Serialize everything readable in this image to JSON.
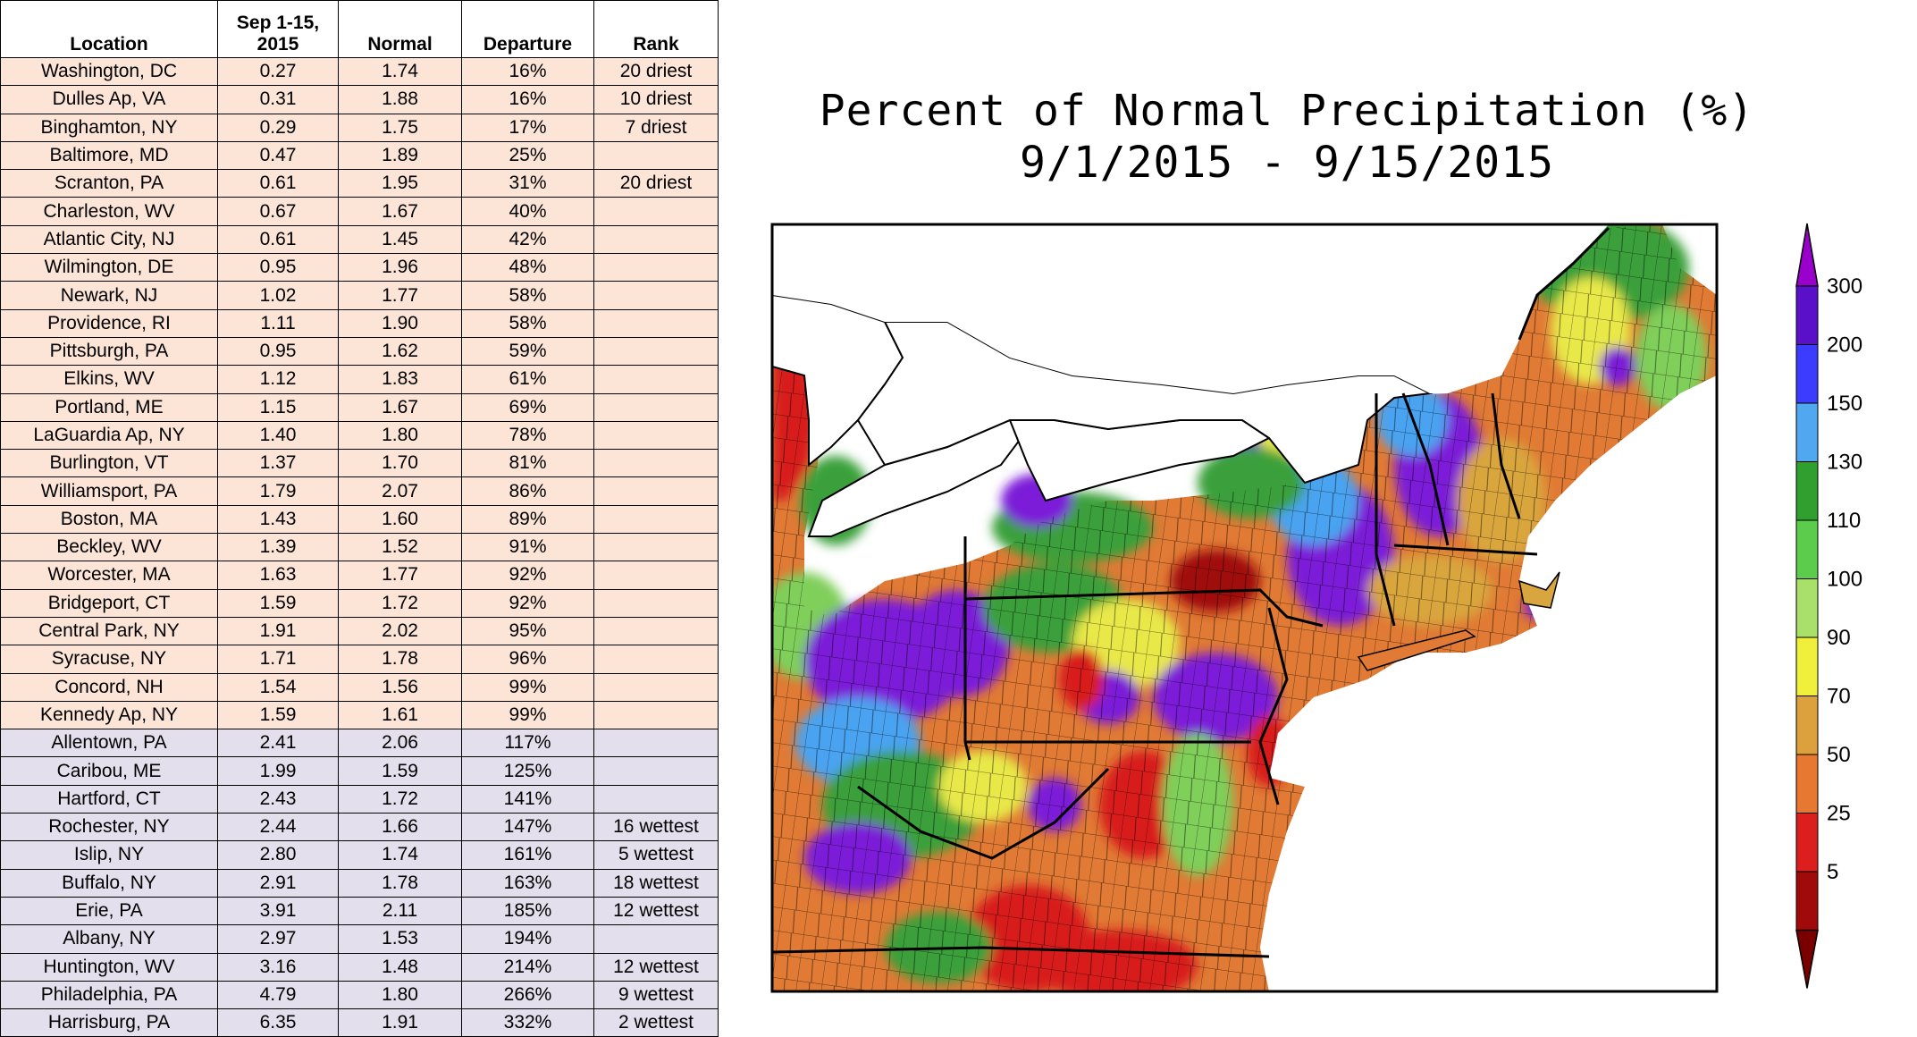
{
  "table": {
    "headers": {
      "location": "Location",
      "observed_line1": "Sep 1-15,",
      "observed_line2": "2015",
      "normal": "Normal",
      "departure": "Departure",
      "rank": "Rank"
    },
    "rows": [
      {
        "location": "Washington, DC",
        "observed": "0.27",
        "normal": "1.74",
        "departure": "16%",
        "rank": "20 driest",
        "group": "dry"
      },
      {
        "location": "Dulles Ap, VA",
        "observed": "0.31",
        "normal": "1.88",
        "departure": "16%",
        "rank": "10 driest",
        "group": "dry"
      },
      {
        "location": "Binghamton, NY",
        "observed": "0.29",
        "normal": "1.75",
        "departure": "17%",
        "rank": "7 driest",
        "group": "dry"
      },
      {
        "location": "Baltimore, MD",
        "observed": "0.47",
        "normal": "1.89",
        "departure": "25%",
        "rank": "",
        "group": "dry"
      },
      {
        "location": "Scranton, PA",
        "observed": "0.61",
        "normal": "1.95",
        "departure": "31%",
        "rank": "20 driest",
        "group": "dry"
      },
      {
        "location": "Charleston, WV",
        "observed": "0.67",
        "normal": "1.67",
        "departure": "40%",
        "rank": "",
        "group": "dry"
      },
      {
        "location": "Atlantic City, NJ",
        "observed": "0.61",
        "normal": "1.45",
        "departure": "42%",
        "rank": "",
        "group": "dry"
      },
      {
        "location": "Wilmington, DE",
        "observed": "0.95",
        "normal": "1.96",
        "departure": "48%",
        "rank": "",
        "group": "dry"
      },
      {
        "location": "Newark, NJ",
        "observed": "1.02",
        "normal": "1.77",
        "departure": "58%",
        "rank": "",
        "group": "dry"
      },
      {
        "location": "Providence, RI",
        "observed": "1.11",
        "normal": "1.90",
        "departure": "58%",
        "rank": "",
        "group": "dry"
      },
      {
        "location": "Pittsburgh, PA",
        "observed": "0.95",
        "normal": "1.62",
        "departure": "59%",
        "rank": "",
        "group": "dry"
      },
      {
        "location": "Elkins, WV",
        "observed": "1.12",
        "normal": "1.83",
        "departure": "61%",
        "rank": "",
        "group": "dry"
      },
      {
        "location": "Portland, ME",
        "observed": "1.15",
        "normal": "1.67",
        "departure": "69%",
        "rank": "",
        "group": "dry"
      },
      {
        "location": "LaGuardia Ap, NY",
        "observed": "1.40",
        "normal": "1.80",
        "departure": "78%",
        "rank": "",
        "group": "dry"
      },
      {
        "location": "Burlington, VT",
        "observed": "1.37",
        "normal": "1.70",
        "departure": "81%",
        "rank": "",
        "group": "dry"
      },
      {
        "location": "Williamsport, PA",
        "observed": "1.79",
        "normal": "2.07",
        "departure": "86%",
        "rank": "",
        "group": "dry"
      },
      {
        "location": "Boston, MA",
        "observed": "1.43",
        "normal": "1.60",
        "departure": "89%",
        "rank": "",
        "group": "dry"
      },
      {
        "location": "Beckley, WV",
        "observed": "1.39",
        "normal": "1.52",
        "departure": "91%",
        "rank": "",
        "group": "dry"
      },
      {
        "location": "Worcester, MA",
        "observed": "1.63",
        "normal": "1.77",
        "departure": "92%",
        "rank": "",
        "group": "dry"
      },
      {
        "location": "Bridgeport, CT",
        "observed": "1.59",
        "normal": "1.72",
        "departure": "92%",
        "rank": "",
        "group": "dry"
      },
      {
        "location": "Central Park, NY",
        "observed": "1.91",
        "normal": "2.02",
        "departure": "95%",
        "rank": "",
        "group": "dry"
      },
      {
        "location": "Syracuse, NY",
        "observed": "1.71",
        "normal": "1.78",
        "departure": "96%",
        "rank": "",
        "group": "dry"
      },
      {
        "location": "Concord, NH",
        "observed": "1.54",
        "normal": "1.56",
        "departure": "99%",
        "rank": "",
        "group": "dry"
      },
      {
        "location": "Kennedy Ap, NY",
        "observed": "1.59",
        "normal": "1.61",
        "departure": "99%",
        "rank": "",
        "group": "dry"
      },
      {
        "location": "Allentown, PA",
        "observed": "2.41",
        "normal": "2.06",
        "departure": "117%",
        "rank": "",
        "group": "wet"
      },
      {
        "location": "Caribou, ME",
        "observed": "1.99",
        "normal": "1.59",
        "departure": "125%",
        "rank": "",
        "group": "wet"
      },
      {
        "location": "Hartford, CT",
        "observed": "2.43",
        "normal": "1.72",
        "departure": "141%",
        "rank": "",
        "group": "wet"
      },
      {
        "location": "Rochester, NY",
        "observed": "2.44",
        "normal": "1.66",
        "departure": "147%",
        "rank": "16 wettest",
        "group": "wet"
      },
      {
        "location": "Islip, NY",
        "observed": "2.80",
        "normal": "1.74",
        "departure": "161%",
        "rank": "5 wettest",
        "group": "wet"
      },
      {
        "location": "Buffalo, NY",
        "observed": "2.91",
        "normal": "1.78",
        "departure": "163%",
        "rank": "18 wettest",
        "group": "wet"
      },
      {
        "location": "Erie, PA",
        "observed": "3.91",
        "normal": "2.11",
        "departure": "185%",
        "rank": "12 wettest",
        "group": "wet"
      },
      {
        "location": "Albany, NY",
        "observed": "2.97",
        "normal": "1.53",
        "departure": "194%",
        "rank": "",
        "group": "wet"
      },
      {
        "location": "Huntington, WV",
        "observed": "3.16",
        "normal": "1.48",
        "departure": "214%",
        "rank": "12 wettest",
        "group": "wet"
      },
      {
        "location": "Philadelphia, PA",
        "observed": "4.79",
        "normal": "1.80",
        "departure": "266%",
        "rank": "9 wettest",
        "group": "wet"
      },
      {
        "location": "Harrisburg, PA",
        "observed": "6.35",
        "normal": "1.91",
        "departure": "332%",
        "rank": "2 wettest",
        "group": "wet"
      }
    ],
    "row_colors": {
      "dry": "#fce4d6",
      "wet": "#e4dfec"
    }
  },
  "map": {
    "title_line1": "Percent of Normal Precipitation (%)",
    "title_line2": "9/1/2015 - 9/15/2015",
    "colorbar": {
      "ticks": [
        "300",
        "200",
        "150",
        "130",
        "110",
        "100",
        "90",
        "70",
        "50",
        "25",
        "5"
      ],
      "colors_top_to_bottom": [
        "#9900cc",
        "#5a0fc8",
        "#3c3cff",
        "#4fa8f0",
        "#2fa02f",
        "#5ccc4c",
        "#a8e06a",
        "#f0f03c",
        "#dca03c",
        "#e67832",
        "#dc1e1e",
        "#a00a0a",
        "#7a0000"
      ]
    },
    "palette": {
      "purple": "#7b1fd8",
      "blue": "#4aa3f0",
      "green_dark": "#3aa03a",
      "green_light": "#7fcf5a",
      "yellow": "#e8e84a",
      "tan": "#d9a53e",
      "orange": "#e07a34",
      "red": "#d81e1e",
      "dark_red": "#a00c0c"
    }
  }
}
